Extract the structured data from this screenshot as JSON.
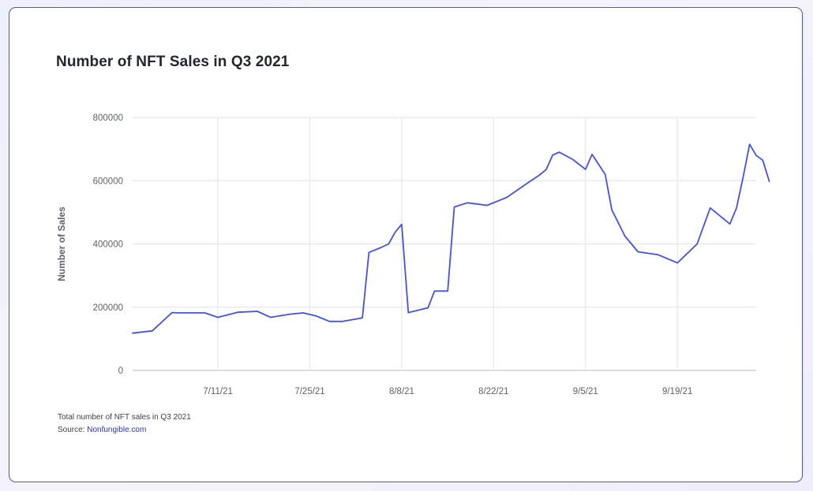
{
  "chart_data": {
    "type": "line",
    "title": "Number of NFT Sales in Q3 2021",
    "xlabel": "",
    "ylabel": "Number of Sales",
    "ylim": [
      0,
      800000
    ],
    "yticks": [
      0,
      200000,
      400000,
      600000,
      800000
    ],
    "ytick_labels": [
      "0",
      "200000",
      "400000",
      "600000",
      "800000"
    ],
    "xlim": [
      "2021-06-28",
      "2021-10-01"
    ],
    "xticks": [
      "2021-07-11",
      "2021-07-25",
      "2021-08-08",
      "2021-08-22",
      "2021-09-05",
      "2021-09-19"
    ],
    "xtick_labels": [
      "7/11/21",
      "7/25/21",
      "8/8/21",
      "8/22/21",
      "9/5/21",
      "9/19/21"
    ],
    "grid": true,
    "legend": "none",
    "series_color": "#4251e8",
    "series": [
      {
        "points": [
          [
            "2021-06-28",
            118000
          ],
          [
            "2021-07-01",
            125000
          ],
          [
            "2021-07-04",
            183000
          ],
          [
            "2021-07-05",
            182000
          ],
          [
            "2021-07-09",
            182000
          ],
          [
            "2021-07-11",
            168000
          ],
          [
            "2021-07-14",
            184000
          ],
          [
            "2021-07-17",
            187000
          ],
          [
            "2021-07-19",
            168000
          ],
          [
            "2021-07-22",
            178000
          ],
          [
            "2021-07-24",
            182000
          ],
          [
            "2021-07-26",
            172000
          ],
          [
            "2021-07-28",
            155000
          ],
          [
            "2021-07-30",
            155000
          ],
          [
            "2021-08-02",
            166000
          ],
          [
            "2021-08-03",
            373000
          ],
          [
            "2021-08-05",
            390000
          ],
          [
            "2021-08-06",
            400000
          ],
          [
            "2021-08-07",
            437000
          ],
          [
            "2021-08-08",
            462000
          ],
          [
            "2021-08-09",
            183000
          ],
          [
            "2021-08-12",
            198000
          ],
          [
            "2021-08-13",
            251000
          ],
          [
            "2021-08-15",
            251000
          ],
          [
            "2021-08-16",
            517000
          ],
          [
            "2021-08-18",
            530000
          ],
          [
            "2021-08-21",
            522000
          ],
          [
            "2021-08-24",
            547000
          ],
          [
            "2021-08-27",
            590000
          ],
          [
            "2021-08-29",
            618000
          ],
          [
            "2021-08-30",
            635000
          ],
          [
            "2021-08-31",
            681000
          ],
          [
            "2021-09-01",
            690000
          ],
          [
            "2021-09-03",
            668000
          ],
          [
            "2021-09-05",
            636000
          ],
          [
            "2021-09-06",
            683000
          ],
          [
            "2021-09-08",
            620000
          ],
          [
            "2021-09-09",
            508000
          ],
          [
            "2021-09-11",
            425000
          ],
          [
            "2021-09-13",
            375000
          ],
          [
            "2021-09-16",
            366000
          ],
          [
            "2021-09-19",
            340000
          ],
          [
            "2021-09-22",
            400000
          ],
          [
            "2021-09-24",
            514000
          ],
          [
            "2021-09-27",
            463000
          ],
          [
            "2021-09-28",
            514000
          ],
          [
            "2021-09-29",
            610000
          ],
          [
            "2021-09-30",
            715000
          ],
          [
            "2021-10-01",
            680000
          ],
          [
            "2021-10-02",
            665000
          ],
          [
            "2021-10-03",
            598000
          ]
        ]
      }
    ]
  },
  "footer": {
    "caption": "Total number of NFT sales in Q3 2021",
    "source_prefix": "Source: ",
    "source_link": "Nonfungible.com"
  }
}
